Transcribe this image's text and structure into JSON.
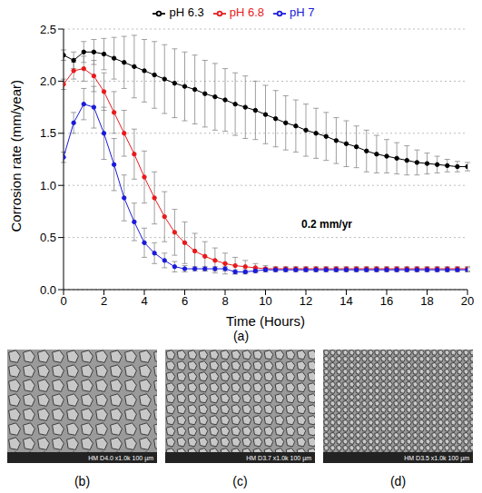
{
  "chart_data": {
    "type": "line",
    "panel_label": "(a)",
    "x_label": "Time (Hours)",
    "y_label": "Corrosion rate (mm/year)",
    "annotation": "0.2 mm/yr",
    "x": [
      0,
      0.5,
      1,
      1.5,
      2,
      2.5,
      3,
      3.5,
      4,
      4.5,
      5,
      5.5,
      6,
      6.5,
      7,
      7.5,
      8,
      8.5,
      9,
      9.5,
      10,
      10.5,
      11,
      11.5,
      12,
      12.5,
      13,
      13.5,
      14,
      14.5,
      15,
      15.5,
      16,
      16.5,
      17,
      17.5,
      18,
      18.5,
      19,
      19.5,
      20
    ],
    "series": [
      {
        "name": "pH 6.3",
        "color": "#000000",
        "marker": "circle",
        "values": [
          2.25,
          2.2,
          2.28,
          2.28,
          2.26,
          2.22,
          2.18,
          2.14,
          2.1,
          2.06,
          2.02,
          1.98,
          1.95,
          1.92,
          1.88,
          1.85,
          1.82,
          1.78,
          1.75,
          1.72,
          1.68,
          1.64,
          1.6,
          1.57,
          1.53,
          1.5,
          1.47,
          1.43,
          1.4,
          1.37,
          1.33,
          1.3,
          1.28,
          1.26,
          1.24,
          1.22,
          1.21,
          1.2,
          1.19,
          1.18,
          1.18
        ],
        "errors": [
          0.05,
          0.08,
          0.1,
          0.12,
          0.15,
          0.2,
          0.25,
          0.3,
          0.3,
          0.32,
          0.33,
          0.33,
          0.33,
          0.33,
          0.32,
          0.32,
          0.3,
          0.3,
          0.3,
          0.28,
          0.28,
          0.27,
          0.26,
          0.25,
          0.25,
          0.24,
          0.23,
          0.22,
          0.22,
          0.2,
          0.2,
          0.18,
          0.16,
          0.15,
          0.14,
          0.12,
          0.1,
          0.08,
          0.06,
          0.05,
          0.04
        ]
      },
      {
        "name": "pH 6.8",
        "color": "#e8191b",
        "marker": "circle",
        "values": [
          1.97,
          2.1,
          2.12,
          2.05,
          1.9,
          1.7,
          1.5,
          1.3,
          1.08,
          0.88,
          0.7,
          0.55,
          0.45,
          0.37,
          0.32,
          0.28,
          0.25,
          0.23,
          0.22,
          0.21,
          0.2,
          0.2,
          0.2,
          0.2,
          0.2,
          0.2,
          0.2,
          0.2,
          0.2,
          0.2,
          0.2,
          0.2,
          0.2,
          0.2,
          0.2,
          0.2,
          0.2,
          0.2,
          0.2,
          0.2,
          0.2
        ],
        "errors": [
          0.05,
          0.08,
          0.12,
          0.15,
          0.18,
          0.2,
          0.22,
          0.24,
          0.25,
          0.25,
          0.24,
          0.22,
          0.2,
          0.17,
          0.14,
          0.12,
          0.1,
          0.08,
          0.06,
          0.04,
          0.03,
          0.02,
          0.02,
          0.02,
          0.02,
          0.02,
          0.02,
          0.02,
          0.02,
          0.02,
          0.02,
          0.02,
          0.02,
          0.02,
          0.02,
          0.02,
          0.02,
          0.02,
          0.02,
          0.02,
          0.02
        ]
      },
      {
        "name": "pH 7",
        "color": "#1a1adb",
        "marker": "circle",
        "values": [
          1.27,
          1.6,
          1.78,
          1.75,
          1.5,
          1.2,
          0.88,
          0.65,
          0.45,
          0.35,
          0.28,
          0.22,
          0.2,
          0.2,
          0.2,
          0.2,
          0.2,
          0.17,
          0.17,
          0.18,
          0.19,
          0.19,
          0.19,
          0.19,
          0.19,
          0.19,
          0.19,
          0.19,
          0.19,
          0.19,
          0.19,
          0.19,
          0.19,
          0.19,
          0.19,
          0.19,
          0.19,
          0.19,
          0.19,
          0.19,
          0.19
        ],
        "errors": [
          0.05,
          0.1,
          0.15,
          0.2,
          0.25,
          0.25,
          0.22,
          0.18,
          0.14,
          0.1,
          0.07,
          0.05,
          0.03,
          0.02,
          0.02,
          0.02,
          0.02,
          0.02,
          0.02,
          0.02,
          0.02,
          0.02,
          0.02,
          0.02,
          0.02,
          0.02,
          0.02,
          0.02,
          0.02,
          0.02,
          0.02,
          0.02,
          0.02,
          0.02,
          0.02,
          0.02,
          0.02,
          0.02,
          0.02,
          0.02,
          0.02
        ]
      }
    ],
    "xlim": [
      0,
      20
    ],
    "xticks": [
      0,
      2,
      4,
      6,
      8,
      10,
      12,
      14,
      16,
      18,
      20
    ],
    "ylim": [
      0,
      2.5
    ],
    "yticks": [
      {
        "value": 0,
        "label": "0.0"
      },
      0.5,
      {
        "value": 1,
        "label": "1.0"
      },
      1.5,
      {
        "value": 2,
        "label": "2.0"
      },
      2.5
    ],
    "grid": true,
    "legend": "top"
  },
  "images": [
    {
      "label": "(b)",
      "caption": "HM D4.0 x1.0k 100 µm"
    },
    {
      "label": "(c)",
      "caption": "HM D3.7 x1.0k 100 µm"
    },
    {
      "label": "(d)",
      "caption": "HM D3.5 x1.0k 100 µm"
    }
  ]
}
